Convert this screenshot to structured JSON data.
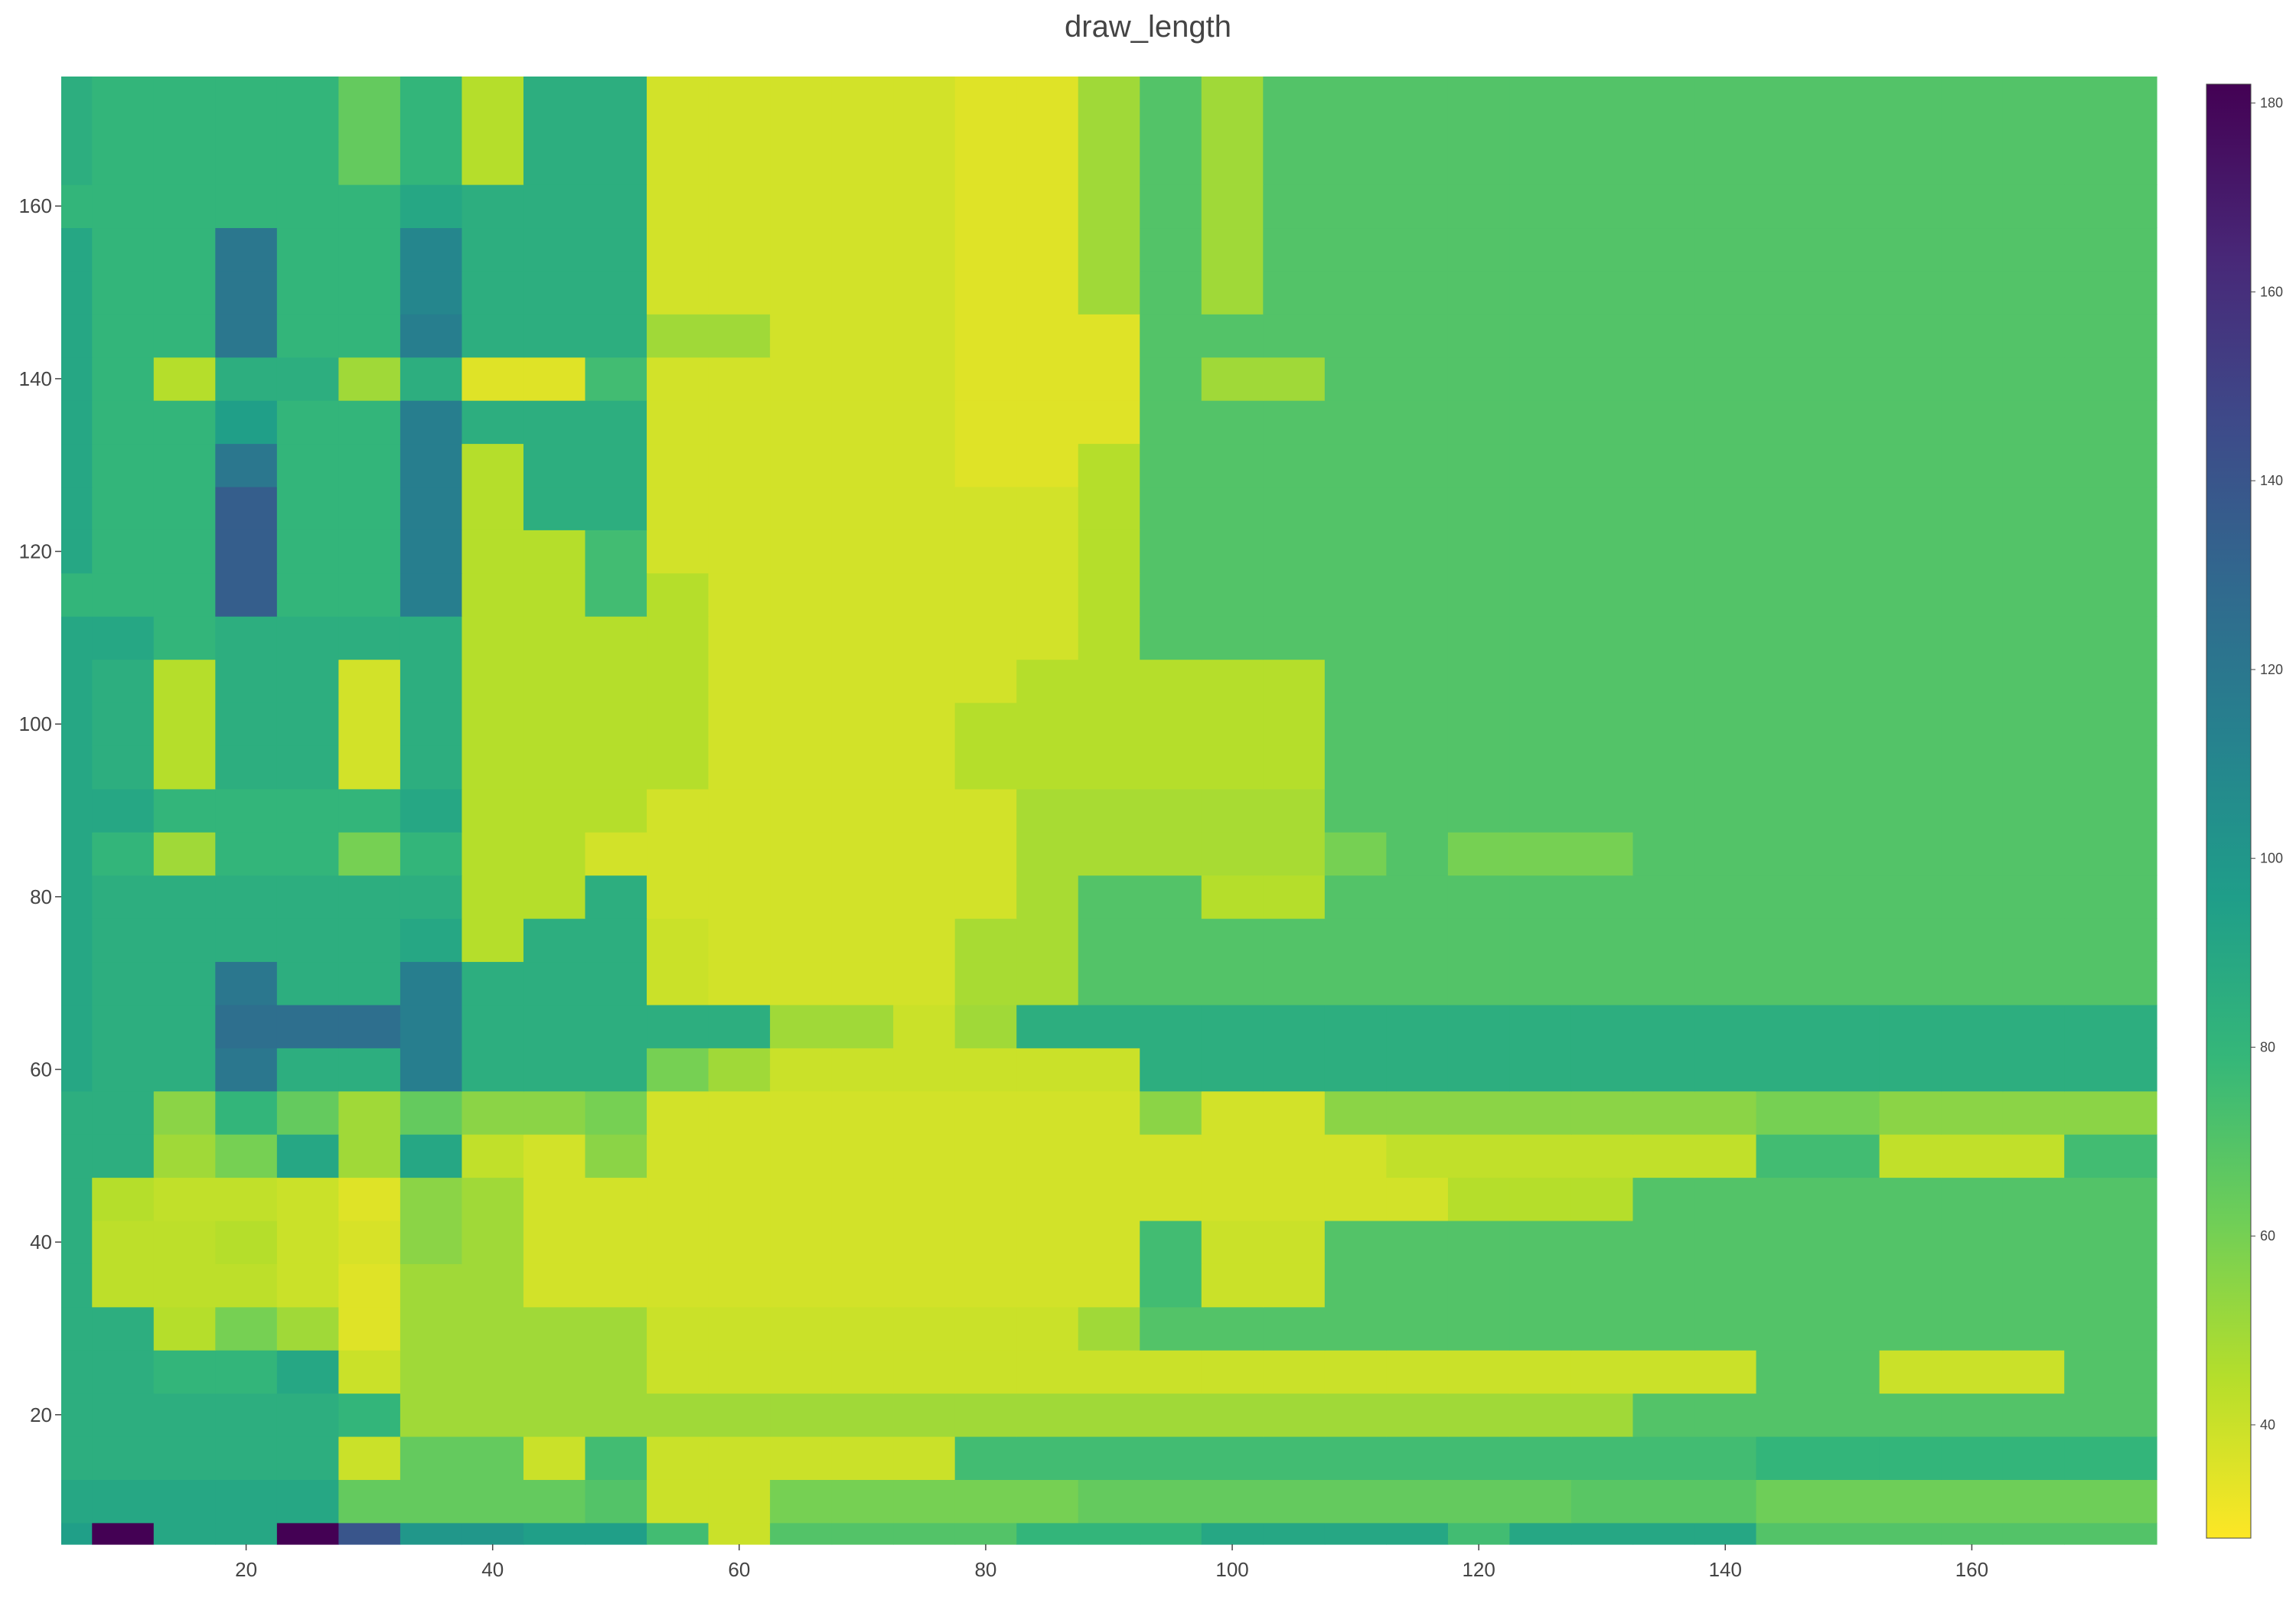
{
  "chart_data": {
    "type": "heatmap",
    "title": "draw_length",
    "xlabel": "",
    "ylabel": "",
    "colorscale": "viridis_reversed",
    "x_edges": [
      5,
      7.5,
      12.5,
      17.5,
      22.5,
      27.5,
      32.5,
      37.5,
      42.5,
      47.5,
      52.5,
      57.5,
      62.5,
      67.5,
      72.5,
      77.5,
      82.5,
      87.5,
      92.5,
      97.5,
      102.5,
      107.5,
      112.5,
      117.5,
      122.5,
      127.5,
      132.5,
      137.5,
      142.5,
      147.5,
      152.5,
      157.5,
      162.5,
      167.5,
      175
    ],
    "y_edges": [
      5,
      7.5,
      12.5,
      17.5,
      22.5,
      27.5,
      32.5,
      37.5,
      42.5,
      47.5,
      52.5,
      57.5,
      62.5,
      67.5,
      72.5,
      77.5,
      82.5,
      87.5,
      92.5,
      97.5,
      102.5,
      107.5,
      112.5,
      117.5,
      122.5,
      127.5,
      132.5,
      137.5,
      142.5,
      147.5,
      152.5,
      157.5,
      162.5,
      167.5,
      175
    ],
    "z": [
      [
        95,
        185,
        90,
        90,
        185,
        140,
        100,
        100,
        95,
        95,
        75,
        40,
        70,
        70,
        70,
        70,
        80,
        80,
        80,
        90,
        90,
        90,
        90,
        75,
        90,
        90,
        90,
        90,
        70,
        70,
        70,
        70,
        70,
        70
      ],
      [
        90,
        90,
        90,
        90,
        90,
        65,
        65,
        65,
        65,
        70,
        40,
        40,
        60,
        60,
        60,
        60,
        60,
        65,
        65,
        65,
        65,
        65,
        65,
        65,
        65,
        68,
        68,
        68,
        62,
        62,
        62,
        62,
        62,
        62
      ],
      [
        85,
        85,
        85,
        85,
        85,
        40,
        65,
        65,
        40,
        75,
        40,
        40,
        40,
        40,
        40,
        75,
        75,
        75,
        75,
        75,
        75,
        75,
        75,
        75,
        75,
        75,
        75,
        75,
        80,
        80,
        80,
        80,
        80,
        80
      ],
      [
        85,
        85,
        85,
        85,
        85,
        80,
        50,
        50,
        50,
        50,
        50,
        50,
        50,
        50,
        50,
        50,
        50,
        50,
        50,
        50,
        50,
        50,
        50,
        50,
        50,
        50,
        70,
        70,
        70,
        70,
        70,
        70,
        70,
        70
      ],
      [
        85,
        85,
        80,
        80,
        90,
        40,
        50,
        50,
        50,
        50,
        40,
        40,
        40,
        40,
        40,
        40,
        40,
        40,
        40,
        40,
        40,
        40,
        40,
        40,
        40,
        40,
        40,
        40,
        70,
        70,
        40,
        40,
        40,
        70
      ],
      [
        85,
        85,
        45,
        60,
        50,
        35,
        50,
        50,
        50,
        50,
        40,
        40,
        40,
        40,
        40,
        40,
        40,
        50,
        70,
        70,
        70,
        70,
        70,
        70,
        70,
        70,
        70,
        70,
        70,
        70,
        70,
        70,
        70,
        70
      ],
      [
        85,
        43,
        43,
        43,
        40,
        35,
        50,
        50,
        38,
        38,
        38,
        38,
        38,
        38,
        38,
        38,
        38,
        38,
        75,
        40,
        40,
        70,
        70,
        70,
        70,
        70,
        70,
        70,
        70,
        70,
        70,
        70,
        70,
        70
      ],
      [
        85,
        43,
        43,
        45,
        40,
        37,
        55,
        50,
        38,
        38,
        38,
        38,
        38,
        38,
        38,
        38,
        38,
        38,
        75,
        40,
        40,
        70,
        70,
        70,
        70,
        70,
        70,
        70,
        70,
        70,
        70,
        70,
        70,
        70
      ],
      [
        85,
        45,
        42,
        42,
        40,
        35,
        55,
        50,
        38,
        38,
        38,
        38,
        38,
        38,
        38,
        38,
        38,
        38,
        38,
        38,
        38,
        38,
        38,
        45,
        45,
        45,
        70,
        70,
        70,
        70,
        70,
        70,
        70,
        70
      ],
      [
        85,
        85,
        50,
        60,
        90,
        50,
        90,
        42,
        38,
        55,
        38,
        38,
        38,
        38,
        38,
        38,
        38,
        38,
        38,
        38,
        38,
        38,
        42,
        42,
        42,
        42,
        42,
        42,
        75,
        75,
        42,
        42,
        42,
        75
      ],
      [
        85,
        85,
        55,
        80,
        65,
        50,
        65,
        55,
        55,
        60,
        38,
        38,
        38,
        38,
        38,
        38,
        38,
        38,
        55,
        38,
        38,
        55,
        55,
        55,
        55,
        55,
        55,
        55,
        60,
        60,
        55,
        55,
        55,
        55
      ],
      [
        90,
        85,
        85,
        120,
        85,
        85,
        115,
        85,
        85,
        85,
        60,
        50,
        40,
        40,
        40,
        40,
        40,
        40,
        85,
        85,
        85,
        85,
        85,
        85,
        85,
        85,
        85,
        85,
        85,
        85,
        85,
        85,
        85,
        85
      ],
      [
        90,
        85,
        85,
        125,
        125,
        125,
        115,
        85,
        85,
        85,
        85,
        85,
        50,
        50,
        40,
        50,
        85,
        85,
        85,
        85,
        85,
        85,
        85,
        85,
        85,
        85,
        85,
        85,
        85,
        85,
        85,
        85,
        85,
        85
      ],
      [
        90,
        85,
        85,
        120,
        85,
        85,
        115,
        85,
        85,
        85,
        40,
        38,
        38,
        38,
        38,
        48,
        48,
        70,
        70,
        70,
        70,
        70,
        70,
        70,
        70,
        70,
        70,
        70,
        70,
        70,
        70,
        70,
        70,
        70
      ],
      [
        90,
        85,
        85,
        85,
        85,
        85,
        90,
        45,
        85,
        85,
        40,
        38,
        38,
        38,
        38,
        48,
        48,
        70,
        70,
        70,
        70,
        70,
        70,
        70,
        70,
        70,
        70,
        70,
        70,
        70,
        70,
        70,
        70,
        70
      ],
      [
        90,
        85,
        85,
        85,
        85,
        85,
        85,
        45,
        45,
        85,
        38,
        38,
        38,
        38,
        38,
        38,
        48,
        70,
        70,
        45,
        45,
        70,
        70,
        70,
        70,
        70,
        70,
        70,
        70,
        70,
        70,
        70,
        70,
        70
      ],
      [
        90,
        80,
        50,
        80,
        80,
        60,
        80,
        45,
        45,
        38,
        38,
        38,
        38,
        38,
        38,
        38,
        48,
        48,
        48,
        48,
        48,
        60,
        70,
        60,
        60,
        60,
        70,
        70,
        70,
        70,
        70,
        70,
        70,
        70
      ],
      [
        90,
        90,
        80,
        80,
        80,
        80,
        90,
        45,
        45,
        45,
        38,
        38,
        38,
        38,
        38,
        38,
        48,
        48,
        48,
        48,
        48,
        70,
        70,
        70,
        70,
        70,
        70,
        70,
        70,
        70,
        70,
        70,
        70,
        70
      ],
      [
        90,
        85,
        45,
        85,
        85,
        38,
        85,
        45,
        45,
        45,
        45,
        38,
        38,
        38,
        38,
        45,
        45,
        45,
        45,
        45,
        45,
        70,
        70,
        70,
        70,
        70,
        70,
        70,
        70,
        70,
        70,
        70,
        70,
        70
      ],
      [
        90,
        85,
        45,
        85,
        85,
        38,
        85,
        45,
        45,
        45,
        45,
        38,
        38,
        38,
        38,
        45,
        45,
        45,
        45,
        45,
        45,
        70,
        70,
        70,
        70,
        70,
        70,
        70,
        70,
        70,
        70,
        70,
        70,
        70
      ],
      [
        90,
        85,
        45,
        85,
        85,
        38,
        85,
        45,
        45,
        45,
        45,
        38,
        38,
        38,
        38,
        38,
        45,
        45,
        45,
        45,
        45,
        70,
        70,
        70,
        70,
        70,
        70,
        70,
        70,
        70,
        70,
        70,
        70,
        70
      ],
      [
        90,
        90,
        80,
        85,
        85,
        85,
        85,
        45,
        45,
        45,
        45,
        38,
        38,
        38,
        38,
        38,
        38,
        45,
        70,
        70,
        70,
        70,
        70,
        70,
        70,
        70,
        70,
        70,
        70,
        70,
        70,
        70,
        70,
        70
      ],
      [
        80,
        80,
        80,
        135,
        80,
        80,
        115,
        45,
        45,
        75,
        45,
        38,
        38,
        38,
        38,
        38,
        38,
        45,
        70,
        70,
        70,
        70,
        70,
        70,
        70,
        70,
        70,
        70,
        70,
        70,
        70,
        70,
        70,
        70
      ],
      [
        90,
        80,
        80,
        135,
        80,
        80,
        115,
        45,
        45,
        75,
        38,
        38,
        38,
        38,
        38,
        38,
        38,
        45,
        70,
        70,
        70,
        70,
        70,
        70,
        70,
        70,
        70,
        70,
        70,
        70,
        70,
        70,
        70,
        70
      ],
      [
        90,
        80,
        80,
        135,
        80,
        80,
        115,
        45,
        85,
        85,
        38,
        38,
        38,
        38,
        38,
        38,
        38,
        45,
        70,
        70,
        70,
        70,
        70,
        70,
        70,
        70,
        70,
        70,
        70,
        70,
        70,
        70,
        70,
        70
      ],
      [
        90,
        80,
        80,
        120,
        80,
        80,
        115,
        45,
        85,
        85,
        38,
        38,
        38,
        38,
        38,
        35,
        35,
        45,
        70,
        70,
        70,
        70,
        70,
        70,
        70,
        70,
        70,
        70,
        70,
        70,
        70,
        70,
        70,
        70
      ],
      [
        90,
        80,
        80,
        95,
        80,
        80,
        115,
        85,
        85,
        85,
        38,
        38,
        38,
        38,
        38,
        35,
        35,
        35,
        70,
        70,
        70,
        70,
        70,
        70,
        70,
        70,
        70,
        70,
        70,
        70,
        70,
        70,
        70,
        70
      ],
      [
        90,
        80,
        45,
        85,
        85,
        50,
        85,
        35,
        35,
        75,
        38,
        38,
        38,
        38,
        38,
        35,
        35,
        35,
        70,
        50,
        50,
        70,
        70,
        70,
        70,
        70,
        70,
        70,
        70,
        70,
        70,
        70,
        70,
        70
      ],
      [
        90,
        80,
        80,
        120,
        80,
        80,
        115,
        85,
        85,
        85,
        50,
        50,
        38,
        38,
        38,
        35,
        35,
        35,
        70,
        70,
        70,
        70,
        70,
        70,
        70,
        70,
        70,
        70,
        70,
        70,
        70,
        70,
        70,
        70
      ],
      [
        90,
        80,
        80,
        120,
        80,
        80,
        110,
        85,
        85,
        85,
        38,
        38,
        38,
        38,
        38,
        35,
        35,
        50,
        70,
        50,
        70,
        70,
        70,
        70,
        70,
        70,
        70,
        70,
        70,
        70,
        70,
        70,
        70,
        70
      ],
      [
        90,
        80,
        80,
        120,
        80,
        80,
        110,
        85,
        85,
        85,
        38,
        38,
        38,
        38,
        38,
        35,
        35,
        50,
        70,
        50,
        70,
        70,
        70,
        70,
        70,
        70,
        70,
        70,
        70,
        70,
        70,
        70,
        70,
        70
      ],
      [
        80,
        80,
        80,
        80,
        80,
        80,
        90,
        85,
        85,
        85,
        38,
        38,
        38,
        38,
        38,
        35,
        35,
        50,
        70,
        50,
        70,
        70,
        70,
        70,
        70,
        70,
        70,
        70,
        70,
        70,
        70,
        70,
        70,
        70
      ],
      [
        85,
        80,
        80,
        80,
        80,
        65,
        80,
        45,
        85,
        85,
        38,
        38,
        38,
        38,
        38,
        35,
        35,
        50,
        70,
        50,
        70,
        70,
        70,
        70,
        70,
        70,
        70,
        70,
        70,
        70,
        70,
        70,
        70,
        70
      ],
      [
        85,
        80,
        80,
        80,
        80,
        65,
        80,
        45,
        85,
        85,
        38,
        38,
        38,
        38,
        38,
        35,
        35,
        50,
        70,
        50,
        70,
        70,
        70,
        70,
        70,
        70,
        70,
        70,
        70,
        70,
        70,
        70,
        70,
        70
      ]
    ],
    "xlim": [
      5,
      175
    ],
    "ylim": [
      5,
      175
    ],
    "x_ticks": [
      20,
      40,
      60,
      80,
      100,
      120,
      140,
      160
    ],
    "y_ticks": [
      20,
      40,
      60,
      80,
      100,
      120,
      140,
      160
    ],
    "colorbar": {
      "min": 28,
      "max": 182,
      "ticks": [
        40,
        60,
        80,
        100,
        120,
        140,
        160,
        180
      ]
    },
    "grid": false
  }
}
